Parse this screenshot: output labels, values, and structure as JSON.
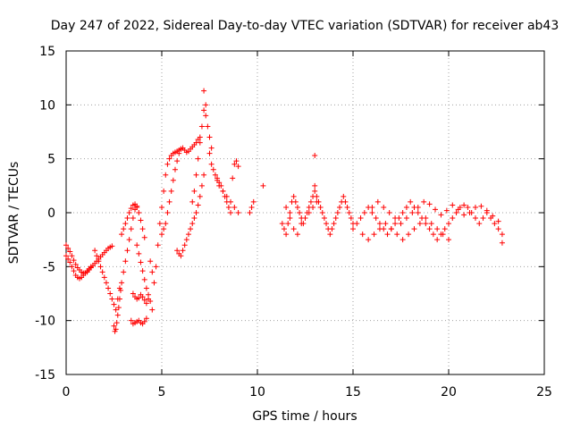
{
  "chart_data": {
    "type": "scatter",
    "title": "Day 247 of 2022, Sidereal Day-to-day VTEC variation (SDTVAR) for receiver ab43",
    "xlabel": "GPS time / hours",
    "ylabel": "SDTVAR / TECUs",
    "xlim": [
      0,
      25
    ],
    "ylim": [
      -15,
      15
    ],
    "xticks": [
      0,
      5,
      10,
      15,
      20,
      25
    ],
    "yticks": [
      -15,
      -10,
      -5,
      0,
      5,
      10,
      15
    ],
    "xtick_labels": [
      "0",
      "5",
      "10",
      "15",
      "20",
      "25"
    ],
    "ytick_labels": [
      "-15",
      "-10",
      "-5",
      "0",
      "5",
      "10",
      "15"
    ],
    "grid": true,
    "marker": "+",
    "color": "#ff0000",
    "series": [
      {
        "name": "SDTVAR",
        "x": [
          0.0,
          0.1,
          0.2,
          0.3,
          0.4,
          0.5,
          0.6,
          0.7,
          0.8,
          0.9,
          1.0,
          1.1,
          1.2,
          1.3,
          1.4,
          1.5,
          1.6,
          1.7,
          1.8,
          1.9,
          2.0,
          2.1,
          2.2,
          2.3,
          2.4,
          0.0,
          0.1,
          0.2,
          0.3,
          0.4,
          0.5,
          0.6,
          0.7,
          0.8,
          0.9,
          1.0,
          1.1,
          1.2,
          1.3,
          1.5,
          1.6,
          1.7,
          1.8,
          1.9,
          2.0,
          2.1,
          2.2,
          2.3,
          2.4,
          2.5,
          2.6,
          2.7,
          2.8,
          2.5,
          2.55,
          2.6,
          2.65,
          2.7,
          2.75,
          2.8,
          2.85,
          2.9,
          3.0,
          3.1,
          3.2,
          3.3,
          3.4,
          3.5,
          3.6,
          3.7,
          2.9,
          3.0,
          3.1,
          3.2,
          3.3,
          3.4,
          3.5,
          3.6,
          3.7,
          3.8,
          3.9,
          4.0,
          4.1,
          3.4,
          3.5,
          3.6,
          3.7,
          3.8,
          3.9,
          4.0,
          4.1,
          4.2,
          3.5,
          3.6,
          3.7,
          3.8,
          3.9,
          4.0,
          4.1,
          4.2,
          4.3,
          3.7,
          3.8,
          3.9,
          4.0,
          4.1,
          4.2,
          4.3,
          4.4,
          4.5,
          4.4,
          4.5,
          4.6,
          4.7,
          4.8,
          4.9,
          5.0,
          5.1,
          5.2,
          5.3,
          5.4,
          5.5,
          5.6,
          5.7,
          5.8,
          5.9,
          6.0,
          5.0,
          5.1,
          5.2,
          5.3,
          5.4,
          5.5,
          5.6,
          5.7,
          5.8,
          5.9,
          6.0,
          6.1,
          6.2,
          6.3,
          6.4,
          6.5,
          6.6,
          6.7,
          6.8,
          6.9,
          7.0,
          5.8,
          5.9,
          6.0,
          6.1,
          6.2,
          6.3,
          6.4,
          6.5,
          6.6,
          6.7,
          6.8,
          6.9,
          7.0,
          7.1,
          7.2,
          6.6,
          6.7,
          6.8,
          6.9,
          7.0,
          7.1,
          7.2,
          7.3,
          7.4,
          7.5,
          7.6,
          7.2,
          7.3,
          7.5,
          7.6,
          7.7,
          7.8,
          7.9,
          8.0,
          8.1,
          8.2,
          8.3,
          8.4,
          8.5,
          8.6,
          8.7,
          8.8,
          8.9,
          9.0,
          7.9,
          8.0,
          8.2,
          8.4,
          8.6,
          8.8,
          9.0,
          9.6,
          9.7,
          9.8,
          10.3,
          11.3,
          11.4,
          11.5,
          11.6,
          11.7,
          11.8,
          11.9,
          12.0,
          12.1,
          12.2,
          12.3,
          12.4,
          12.5,
          12.6,
          12.7,
          12.8,
          12.9,
          13.0,
          13.1,
          13.2,
          13.3,
          13.4,
          13.5,
          13.6,
          13.7,
          13.8,
          13.9,
          14.0,
          14.1,
          14.2,
          14.3,
          14.4,
          14.5,
          14.6,
          14.7,
          14.8,
          14.9,
          15.0,
          11.5,
          11.7,
          11.9,
          12.1,
          12.3,
          12.5,
          12.7,
          12.9,
          13.1,
          13.0,
          13.0,
          15.0,
          15.2,
          15.4,
          15.6,
          15.8,
          16.0,
          16.2,
          16.4,
          16.6,
          16.8,
          17.0,
          17.2,
          17.4,
          17.6,
          17.8,
          18.0,
          18.2,
          18.4,
          18.6,
          18.8,
          19.0,
          19.2,
          19.4,
          19.6,
          19.8,
          20.0,
          20.2,
          20.4,
          20.6,
          20.8,
          21.0,
          21.2,
          21.4,
          21.6,
          21.8,
          22.0,
          22.2,
          22.4,
          22.6,
          22.8,
          15.5,
          15.8,
          16.1,
          16.4,
          16.7,
          17.0,
          17.3,
          17.6,
          17.9,
          18.2,
          18.5,
          18.8,
          19.1,
          19.4,
          19.7,
          20.0,
          16.0,
          16.3,
          16.6,
          16.9,
          17.2,
          17.5,
          17.8,
          18.1,
          18.4,
          18.7,
          19.0,
          19.3,
          19.6,
          19.9,
          20.2,
          20.5,
          20.8,
          21.1,
          21.4,
          21.7,
          22.0,
          22.3,
          22.6,
          22.8
        ],
        "y": [
          -3.0,
          -3.3,
          -3.6,
          -4.0,
          -4.4,
          -4.8,
          -5.1,
          -5.3,
          -5.5,
          -5.6,
          -5.6,
          -5.5,
          -5.3,
          -5.1,
          -4.9,
          -4.7,
          -4.5,
          -4.3,
          -4.1,
          -3.9,
          -3.7,
          -3.5,
          -3.3,
          -3.2,
          -3.1,
          -4.0,
          -4.3,
          -4.6,
          -5.0,
          -5.4,
          -5.8,
          -6.0,
          -6.1,
          -6.0,
          -5.8,
          -5.6,
          -5.4,
          -5.2,
          -5.0,
          -3.5,
          -4.0,
          -4.5,
          -5.0,
          -5.5,
          -6.0,
          -6.5,
          -7.0,
          -7.5,
          -8.0,
          -8.5,
          -9.0,
          -8.0,
          -7.0,
          -10.5,
          -11.0,
          -10.8,
          -10.2,
          -9.5,
          -8.8,
          -8.0,
          -7.2,
          -6.5,
          -5.5,
          -4.5,
          -3.5,
          -2.5,
          -1.5,
          -0.5,
          0.3,
          0.6,
          -2.0,
          -1.5,
          -1.0,
          -0.5,
          0.0,
          0.4,
          0.7,
          0.8,
          0.5,
          0.0,
          -0.7,
          -1.5,
          -2.3,
          -10.0,
          -10.3,
          -10.2,
          -10.1,
          -10.0,
          -10.2,
          -10.3,
          -10.1,
          -9.8,
          -7.5,
          -7.8,
          -8.0,
          -7.9,
          -7.6,
          -7.8,
          -8.1,
          -8.4,
          -8.0,
          -3.0,
          -3.8,
          -4.6,
          -5.4,
          -6.2,
          -7.0,
          -7.6,
          -8.2,
          -9.0,
          -4.5,
          -5.5,
          -6.5,
          -5.0,
          -3.0,
          -1.0,
          0.5,
          2.0,
          3.5,
          4.5,
          5.0,
          5.3,
          5.5,
          5.6,
          5.7,
          5.8,
          5.9,
          -2.0,
          -1.5,
          -1.0,
          0.0,
          1.0,
          2.0,
          3.0,
          4.0,
          4.8,
          5.5,
          5.9,
          6.0,
          5.8,
          5.6,
          5.7,
          5.9,
          6.1,
          6.3,
          6.5,
          6.8,
          7.0,
          -3.5,
          -3.8,
          -4.0,
          -3.5,
          -3.0,
          -2.5,
          -2.0,
          -1.5,
          -1.0,
          -0.5,
          0.0,
          0.7,
          1.5,
          2.5,
          3.5,
          1.0,
          2.0,
          3.5,
          5.0,
          6.5,
          8.0,
          9.5,
          9.0,
          8.0,
          7.0,
          6.0,
          11.3,
          10.0,
          5.5,
          4.5,
          4.0,
          3.5,
          3.2,
          2.8,
          2.5,
          2.0,
          1.5,
          1.0,
          0.5,
          0.0,
          3.2,
          4.5,
          4.8,
          4.3,
          3.0,
          2.5,
          2.0,
          1.5,
          1.0,
          0.5,
          0.0,
          0.0,
          0.5,
          1.0,
          2.5,
          -1.0,
          -1.5,
          -2.0,
          -1.0,
          0.0,
          1.0,
          1.5,
          1.0,
          0.5,
          0.0,
          -0.5,
          -1.0,
          -0.5,
          0.0,
          0.5,
          1.0,
          1.5,
          2.0,
          1.5,
          1.0,
          0.5,
          0.0,
          -0.5,
          -1.0,
          -1.5,
          -2.0,
          -1.5,
          -1.0,
          -0.5,
          0.0,
          0.5,
          1.0,
          1.5,
          1.0,
          0.5,
          0.0,
          -0.5,
          -1.0,
          0.5,
          -0.5,
          -1.5,
          -2.0,
          -1.0,
          -0.5,
          0.0,
          0.5,
          1.0,
          5.3,
          2.5,
          -1.5,
          -1.0,
          -0.5,
          0.0,
          0.5,
          0.0,
          -0.5,
          -1.0,
          -1.5,
          -2.0,
          -1.5,
          -1.0,
          -0.5,
          0.0,
          0.5,
          1.0,
          0.5,
          0.0,
          -0.5,
          -1.0,
          -1.5,
          -2.0,
          -2.5,
          -2.0,
          -1.5,
          -1.0,
          -0.5,
          0.0,
          0.5,
          0.7,
          0.5,
          0.0,
          -0.5,
          -1.0,
          -0.5,
          0.0,
          -0.5,
          -1.0,
          -1.5,
          -2.0,
          -2.0,
          -2.5,
          -2.0,
          -1.5,
          -1.0,
          -1.5,
          -2.0,
          -2.5,
          -2.0,
          -1.5,
          -1.0,
          -0.5,
          -1.0,
          -1.5,
          -2.0,
          -2.5,
          0.5,
          1.0,
          0.5,
          0.0,
          -0.5,
          -1.0,
          -0.5,
          0.0,
          0.5,
          1.0,
          0.8,
          0.3,
          -0.2,
          0.2,
          0.7,
          0.3,
          -0.2,
          0.0,
          0.5,
          0.6,
          0.2,
          -0.3,
          -0.8,
          -2.8
        ]
      }
    ]
  }
}
